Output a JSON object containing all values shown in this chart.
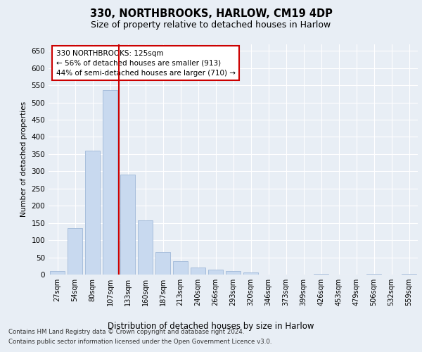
{
  "title1": "330, NORTHBROOKS, HARLOW, CM19 4DP",
  "title2": "Size of property relative to detached houses in Harlow",
  "xlabel": "Distribution of detached houses by size in Harlow",
  "ylabel": "Number of detached properties",
  "bar_labels": [
    "27sqm",
    "54sqm",
    "80sqm",
    "107sqm",
    "133sqm",
    "160sqm",
    "187sqm",
    "213sqm",
    "240sqm",
    "266sqm",
    "293sqm",
    "320sqm",
    "346sqm",
    "373sqm",
    "399sqm",
    "426sqm",
    "453sqm",
    "479sqm",
    "506sqm",
    "532sqm",
    "559sqm"
  ],
  "bar_values": [
    10,
    135,
    360,
    535,
    290,
    158,
    65,
    38,
    20,
    15,
    10,
    7,
    0,
    0,
    0,
    3,
    0,
    0,
    3,
    0,
    2
  ],
  "bar_color": "#c8d9ef",
  "bar_edgecolor": "#a0b8d8",
  "vline_x": 4.0,
  "vline_color": "#cc0000",
  "annotation_text": "330 NORTHBROOKS: 125sqm\n← 56% of detached houses are smaller (913)\n44% of semi-detached houses are larger (710) →",
  "annotation_box_color": "#ffffff",
  "annotation_box_edge": "#cc0000",
  "ylim": [
    0,
    670
  ],
  "yticks": [
    0,
    50,
    100,
    150,
    200,
    250,
    300,
    350,
    400,
    450,
    500,
    550,
    600,
    650
  ],
  "footer1": "Contains HM Land Registry data © Crown copyright and database right 2024.",
  "footer2": "Contains public sector information licensed under the Open Government Licence v3.0.",
  "bg_color": "#e8eef5",
  "plot_bg_color": "#e8eef5"
}
